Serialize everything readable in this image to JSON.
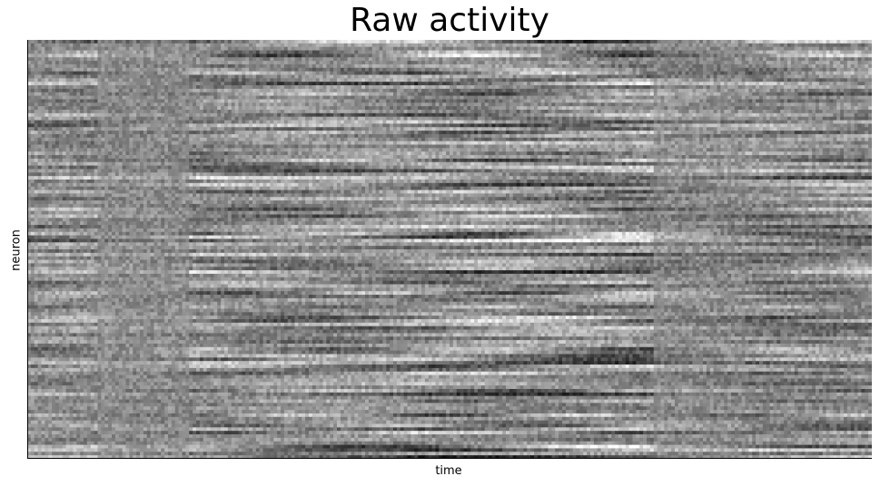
{
  "chart_data": {
    "type": "heatmap",
    "title": "Raw activity",
    "xlabel": "time",
    "ylabel": "neuron",
    "colormap": "gray",
    "grid": false,
    "ticks": "none",
    "n_rows": 120,
    "n_cols": 240,
    "time_epochs": [
      {
        "start": 0.0,
        "end": 0.08,
        "contrast": 0.65
      },
      {
        "start": 0.08,
        "end": 0.19,
        "contrast": 0.25
      },
      {
        "start": 0.19,
        "end": 0.45,
        "contrast": 0.8
      },
      {
        "start": 0.45,
        "end": 0.74,
        "contrast": 1.0
      },
      {
        "start": 0.74,
        "end": 0.85,
        "contrast": 0.45
      },
      {
        "start": 0.85,
        "end": 1.0,
        "contrast": 0.75
      }
    ],
    "colors": {
      "low": "#000000",
      "high": "#ffffff",
      "mid": "#8c8c8c"
    }
  }
}
